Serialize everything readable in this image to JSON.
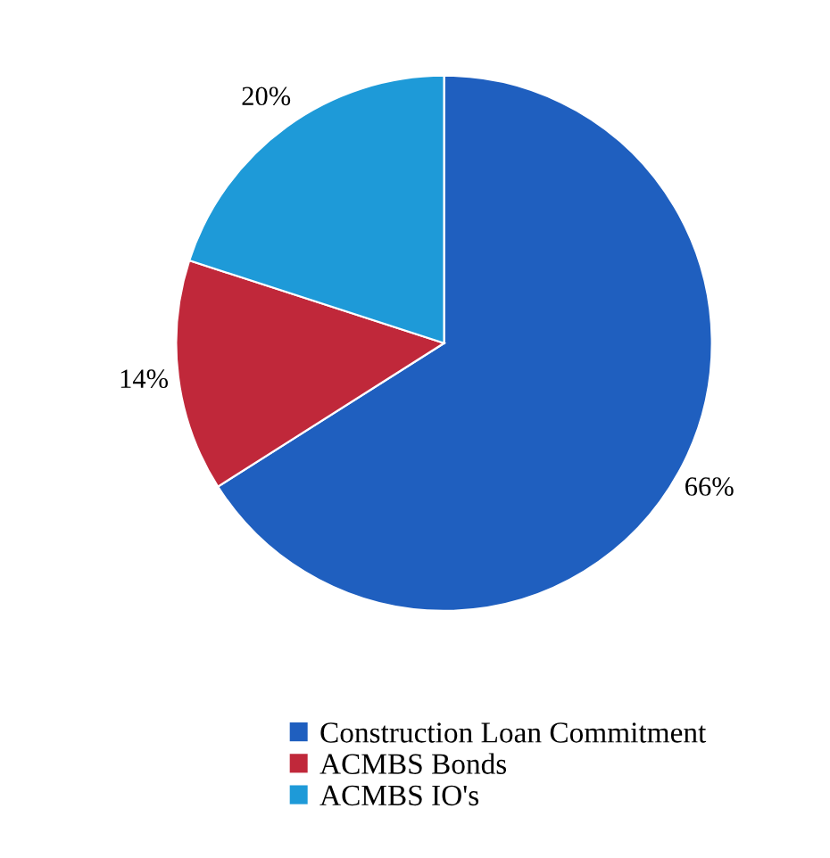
{
  "chart_data": {
    "type": "pie",
    "categories": [
      "Construction Loan Commitment",
      "ACMBS Bonds",
      "ACMBS IO's"
    ],
    "values": [
      66,
      14,
      20
    ],
    "colors": [
      "#1f5fbf",
      "#c0283a",
      "#1e9ad8"
    ],
    "value_labels": [
      "66%",
      "14%",
      "20%"
    ],
    "legend": "bottom"
  }
}
